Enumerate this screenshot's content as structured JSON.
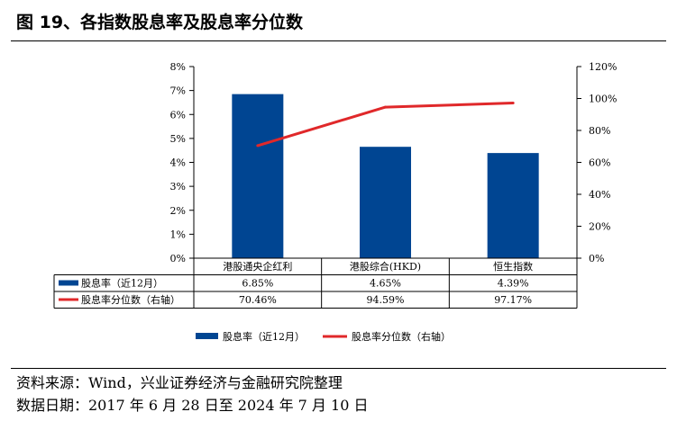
{
  "title": "图 19、各指数股息率及股息率分位数",
  "source": "资料来源：Wind，兴业证券经济与金融研究院整理",
  "date_range": "数据日期：2017 年 6 月 28 日至 2024 年 7 月 10 日",
  "chart_data": {
    "type": "bar",
    "title": "",
    "categories": [
      "港股通央企红利",
      "港股综合(HKD)",
      "恒生指数"
    ],
    "series": [
      {
        "name": "股息率（近12月）",
        "type": "bar",
        "axis": "left",
        "color": "#004592",
        "values": [
          6.85,
          4.65,
          4.39
        ],
        "labels": [
          "6.85%",
          "4.65%",
          "4.39%"
        ]
      },
      {
        "name": "股息率分位数（右轴）",
        "type": "line",
        "axis": "right",
        "color": "#e0282a",
        "values": [
          70.46,
          94.59,
          97.17
        ],
        "labels": [
          "70.46%",
          "94.59%",
          "97.17%"
        ]
      }
    ],
    "y_left": {
      "range": [
        0,
        8
      ],
      "ticks": [
        "0%",
        "1%",
        "2%",
        "3%",
        "4%",
        "5%",
        "6%",
        "7%",
        "8%"
      ]
    },
    "y_right": {
      "range": [
        0,
        120
      ],
      "ticks": [
        "0%",
        "20%",
        "40%",
        "60%",
        "80%",
        "100%",
        "120%"
      ]
    },
    "legend": {
      "position": "bottom",
      "entries": [
        "股息率（近12月）",
        "股息率分位数（右轴）"
      ]
    },
    "grid": false
  }
}
